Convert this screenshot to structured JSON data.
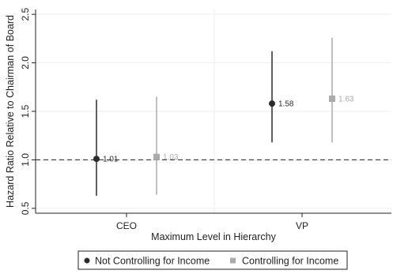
{
  "chart_data": {
    "type": "scatter",
    "title": "",
    "xlabel": "Maximum Level in Hierarchy",
    "ylabel": "Hazard Ratio Relative to Chairman of Board",
    "categories": [
      "CEO",
      "VP"
    ],
    "ylim": [
      0.45,
      2.55
    ],
    "yticks": [
      0.5,
      1.0,
      1.5,
      2.0,
      2.5
    ],
    "ytick_labels": [
      "0.5",
      "1.0",
      "1.5",
      "2.0",
      "2.5"
    ],
    "reference_line": 1.0,
    "grid": true,
    "legend_position": "bottom",
    "series": [
      {
        "name": "Not Controlling for Income",
        "color": "#2b2b2b",
        "marker": "circle",
        "values": [
          1.01,
          1.58
        ],
        "ci_low": [
          0.63,
          1.18
        ],
        "ci_high": [
          1.62,
          2.12
        ],
        "labels": [
          "1.01",
          "1.58"
        ]
      },
      {
        "name": "Controlling for Income",
        "color": "#aaaaaa",
        "marker": "square",
        "values": [
          1.03,
          1.63
        ],
        "ci_low": [
          0.64,
          1.18
        ],
        "ci_high": [
          1.65,
          2.26
        ],
        "labels": [
          "1.03",
          "1.63"
        ]
      }
    ]
  }
}
